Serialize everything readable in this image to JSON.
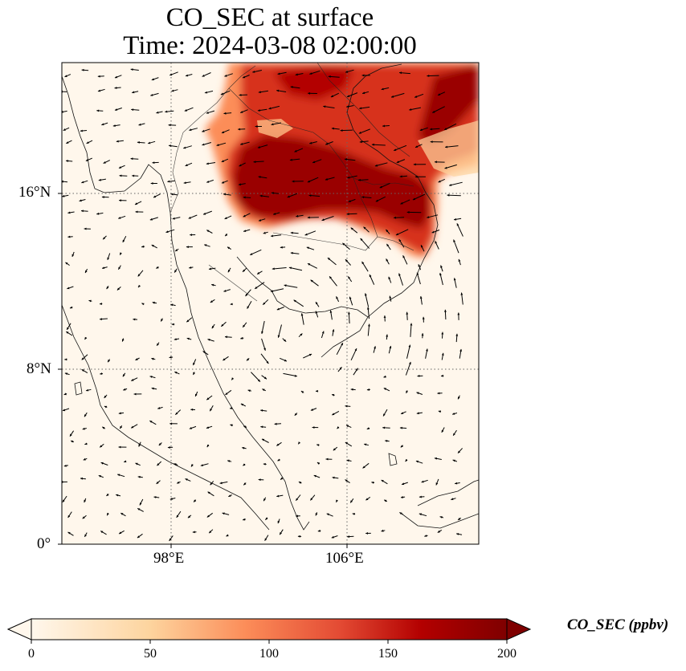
{
  "title": {
    "line1": "CO_SEC at surface",
    "line2": "Time: 2024-03-08 02:00:00"
  },
  "map": {
    "extent": {
      "lon_min": 93,
      "lon_max": 112,
      "lat_min": 0,
      "lat_max": 22
    },
    "lat_ticks": [
      "16°N",
      "8°N",
      "0°"
    ],
    "lon_ticks": [
      "98°E",
      "106°E"
    ],
    "gridlines": "dotted",
    "variable": "CO_SEC",
    "colormap": "OrRd",
    "wind_vectors": true
  },
  "colorbar": {
    "label": "CO_SEC (ppbv)",
    "ticks": [
      "0",
      "50",
      "100",
      "150",
      "200"
    ],
    "min": 0,
    "max": 200,
    "extend": "both"
  }
}
